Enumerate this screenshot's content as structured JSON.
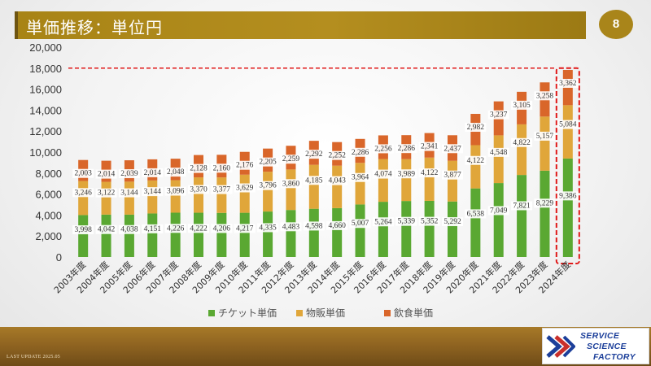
{
  "slide": {
    "title": "単価推移：単位円",
    "page_number": "8",
    "footer_note": "LAST UPDATE 2025.05",
    "logo_lines": [
      "SERVICE",
      "SCIENCE",
      "FACTORY"
    ]
  },
  "chart_data": {
    "type": "bar",
    "stacked": true,
    "categories": [
      "2003年度",
      "2004年度",
      "2005年度",
      "2006年度",
      "2007年度",
      "2008年度",
      "2009年度",
      "2010年度",
      "2011年度",
      "2012年度",
      "2013年度",
      "2014年度",
      "2015年度",
      "2016年度",
      "2017年度",
      "2018年度",
      "2019年度",
      "2020年度",
      "2021年度",
      "2022年度",
      "2023年度",
      "2024年度"
    ],
    "series": [
      {
        "name": "チケット単価",
        "color": "#5aa832",
        "values": [
          3998,
          4042,
          4038,
          4151,
          4226,
          4222,
          4206,
          4217,
          4335,
          4483,
          4598,
          4660,
          5007,
          5264,
          5339,
          5352,
          5292,
          6538,
          7049,
          7821,
          8229,
          9386
        ]
      },
      {
        "name": "物販単価",
        "color": "#e0a63a",
        "values": [
          3246,
          3122,
          3144,
          3144,
          3096,
          3370,
          3377,
          3629,
          3796,
          3860,
          4185,
          4043,
          3964,
          4074,
          3989,
          4122,
          3877,
          4122,
          4548,
          4822,
          5157,
          5084
        ]
      },
      {
        "name": "飲食単価",
        "color": "#d9662a",
        "values": [
          2003,
          2014,
          2039,
          2014,
          2048,
          2128,
          2160,
          2176,
          2205,
          2259,
          2292,
          2252,
          2286,
          2256,
          2286,
          2341,
          2437,
          2982,
          3237,
          3105,
          3258,
          3362
        ]
      }
    ],
    "value_labels": {
      "チケット単価": [
        "3,998",
        "4,042",
        "4,038",
        "4,151",
        "4,226",
        "4,222",
        "4,206",
        "4,217",
        "4,335",
        "4,483",
        "4,598",
        "4,660",
        "5,007",
        "5,264",
        "5,339",
        "5,352",
        "5,292",
        "6,538",
        "7,049",
        "7,821",
        "8,229",
        "9,386"
      ],
      "物販単価": [
        "3,246",
        "3,122",
        "3,144",
        "3,144",
        "3,096",
        "3,370",
        "3,377",
        "3,629",
        "3,796",
        "3,860",
        "4,185",
        "4,043",
        "3,964",
        "4,074",
        "3,989",
        "4,122",
        "3,877",
        "4,122",
        "4,548",
        "4,822",
        "5,157",
        "5,084"
      ],
      "飲食単価": [
        "2,003",
        "2,014",
        "2,039",
        "2,014",
        "2,048",
        "2,128",
        "2,160",
        "2,176",
        "2,205",
        "2,259",
        "2,292",
        "2,252",
        "2,286",
        "2,256",
        "2,286",
        "2,341",
        "2,437",
        "2,982",
        "3,237",
        "3,105",
        "3,258",
        "3,362"
      ]
    },
    "y_ticks": [
      "0",
      "2,000",
      "4,000",
      "6,000",
      "8,000",
      "10,000",
      "12,000",
      "14,000",
      "16,000",
      "18,000",
      "20,000"
    ],
    "ylim": [
      0,
      20000
    ],
    "grid": false,
    "legend_position": "bottom",
    "highlight": {
      "category": "2024年度",
      "reference_value": 18000,
      "style": "red-dashed"
    }
  }
}
